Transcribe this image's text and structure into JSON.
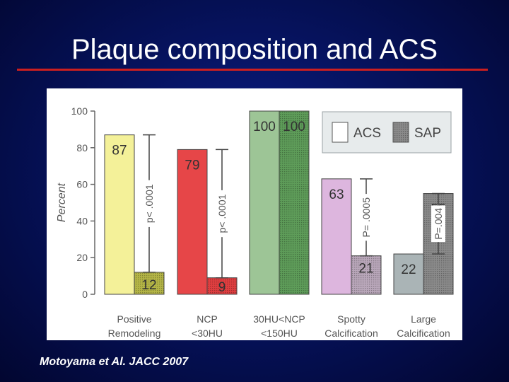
{
  "slide": {
    "title": "Plaque composition and ACS",
    "citation": "Motoyama et Al. JACC 2007"
  },
  "chart_data": {
    "type": "bar",
    "ylabel": "Percent",
    "ylim": [
      0,
      100
    ],
    "yticks": [
      "0",
      "20",
      "40",
      "60",
      "80",
      "100"
    ],
    "grid": false,
    "legend_position": "top-right",
    "categories": [
      [
        "Positive",
        "Remodeling"
      ],
      [
        "NCP",
        "<30HU"
      ],
      [
        "30HU<NCP",
        "<150HU"
      ],
      [
        "Spotty",
        "Calcification"
      ],
      [
        "Large",
        "Calcification"
      ]
    ],
    "series": [
      {
        "name": "ACS",
        "values": [
          87,
          79,
          100,
          63,
          22
        ]
      },
      {
        "name": "SAP",
        "values": [
          12,
          9,
          100,
          21,
          55
        ]
      }
    ],
    "value_labels": {
      "acs": [
        "87",
        "79",
        "100",
        "63",
        "22"
      ],
      "sap": [
        "12",
        "9",
        "100",
        "21",
        "55"
      ]
    },
    "colors": {
      "acs": [
        "#f4f199",
        "#e64648",
        "#9dc596",
        "#ddb6de",
        "#aab4b6"
      ],
      "sap": [
        "#b4b546",
        "#df3e40",
        "#5e9c59",
        "#b9a7ba",
        "#8a8a8a"
      ]
    },
    "annotations": [
      {
        "group": 0,
        "text": "p< .0001"
      },
      {
        "group": 1,
        "text": "p< .0001"
      },
      {
        "group": 3,
        "text": "P= .0005"
      },
      {
        "group": 4,
        "text": "P=.004"
      }
    ]
  }
}
